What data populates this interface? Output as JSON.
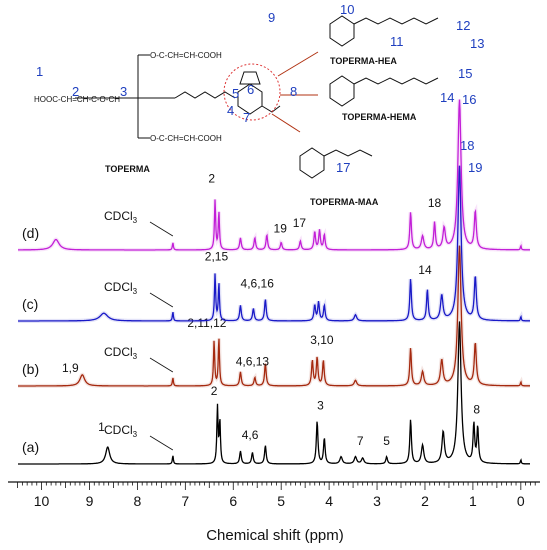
{
  "chart_data": {
    "type": "line",
    "title": "",
    "xlabel": "Chemical shift (ppm)",
    "ylabel": "",
    "xlim": [
      10.7,
      -0.4
    ],
    "reversed_x": true,
    "x_ticks": [
      "10",
      "9",
      "8",
      "7",
      "6",
      "5",
      "4",
      "3",
      "2",
      "1",
      "0"
    ],
    "solvent_label": "CDCl",
    "solvent_subscript": "3",
    "structures": {
      "core": "TOPERMA",
      "core_formula_left": "HOOC-CH=CH-C-O-CH",
      "derivatives": [
        "TOPERMA-HEA",
        "TOPERMA-HEMA",
        "TOPERMA-MAA"
      ],
      "core_numbers": [
        "1",
        "2",
        "3",
        "4",
        "5",
        "6",
        "7",
        "8"
      ],
      "hea_numbers": [
        "9",
        "10",
        "11",
        "12",
        "13"
      ],
      "hema_numbers": [
        "14",
        "15",
        "16"
      ],
      "maa_numbers": [
        "17",
        "18",
        "19"
      ]
    },
    "series": [
      {
        "name": "(a)",
        "color": "#000000",
        "peaks": [
          {
            "ppm": 8.62,
            "h": 0.12,
            "w": 0.05
          },
          {
            "ppm": 7.26,
            "h": 0.06,
            "w": 0.012
          },
          {
            "ppm": 6.33,
            "h": 0.4,
            "w": 0.015
          },
          {
            "ppm": 6.28,
            "h": 0.3,
            "w": 0.015
          },
          {
            "ppm": 5.85,
            "h": 0.09,
            "w": 0.02
          },
          {
            "ppm": 5.6,
            "h": 0.08,
            "w": 0.02
          },
          {
            "ppm": 5.33,
            "h": 0.13,
            "w": 0.02
          },
          {
            "ppm": 4.25,
            "h": 0.3,
            "w": 0.02
          },
          {
            "ppm": 4.1,
            "h": 0.18,
            "w": 0.02
          },
          {
            "ppm": 3.75,
            "h": 0.05,
            "w": 0.03
          },
          {
            "ppm": 3.45,
            "h": 0.05,
            "w": 0.03
          },
          {
            "ppm": 3.3,
            "h": 0.04,
            "w": 0.03
          },
          {
            "ppm": 2.8,
            "h": 0.05,
            "w": 0.02
          },
          {
            "ppm": 2.3,
            "h": 0.31,
            "w": 0.02
          },
          {
            "ppm": 2.05,
            "h": 0.13,
            "w": 0.03
          },
          {
            "ppm": 1.62,
            "h": 0.22,
            "w": 0.03
          },
          {
            "ppm": 1.28,
            "h": 1.0,
            "w": 0.04
          },
          {
            "ppm": 0.98,
            "h": 0.27,
            "w": 0.02
          },
          {
            "ppm": 0.9,
            "h": 0.25,
            "w": 0.02
          },
          {
            "ppm": 0.0,
            "h": 0.03,
            "w": 0.01
          }
        ],
        "labels": [
          {
            "text": "1",
            "ppm": 8.75,
            "dy": -10
          },
          {
            "text": "2",
            "ppm": 6.4,
            "dy": -6
          },
          {
            "text": "4,6",
            "ppm": 5.65,
            "dy": -6
          },
          {
            "text": "3",
            "ppm": 4.18,
            "dy": -6
          },
          {
            "text": "7",
            "ppm": 3.35,
            "dy": -6
          },
          {
            "text": "5",
            "ppm": 2.8,
            "dy": -6
          },
          {
            "text": "8",
            "ppm": 0.92,
            "dy": -6
          }
        ]
      },
      {
        "name": "(b)",
        "color": "#a52a0f",
        "peaks": [
          {
            "ppm": 9.15,
            "h": 0.08,
            "w": 0.06
          },
          {
            "ppm": 7.26,
            "h": 0.06,
            "w": 0.012
          },
          {
            "ppm": 6.4,
            "h": 0.32,
            "w": 0.015
          },
          {
            "ppm": 6.3,
            "h": 0.34,
            "w": 0.015
          },
          {
            "ppm": 5.85,
            "h": 0.1,
            "w": 0.02
          },
          {
            "ppm": 5.55,
            "h": 0.06,
            "w": 0.02
          },
          {
            "ppm": 5.33,
            "h": 0.16,
            "w": 0.02
          },
          {
            "ppm": 4.35,
            "h": 0.18,
            "w": 0.02
          },
          {
            "ppm": 4.25,
            "h": 0.2,
            "w": 0.02
          },
          {
            "ppm": 4.12,
            "h": 0.18,
            "w": 0.02
          },
          {
            "ppm": 3.45,
            "h": 0.04,
            "w": 0.03
          },
          {
            "ppm": 2.3,
            "h": 0.27,
            "w": 0.02
          },
          {
            "ppm": 2.05,
            "h": 0.1,
            "w": 0.03
          },
          {
            "ppm": 1.65,
            "h": 0.18,
            "w": 0.03
          },
          {
            "ppm": 1.28,
            "h": 1.0,
            "w": 0.04
          },
          {
            "ppm": 0.95,
            "h": 0.3,
            "w": 0.025
          },
          {
            "ppm": 0.0,
            "h": 0.03,
            "w": 0.01
          }
        ],
        "labels": [
          {
            "text": "1,9",
            "ppm": 9.4,
            "dy": -8
          },
          {
            "text": "2,11,12",
            "ppm": 6.55,
            "dy": -8
          },
          {
            "text": "4,6,13",
            "ppm": 5.6,
            "dy": -6
          },
          {
            "text": "3,10",
            "ppm": 4.15,
            "dy": -8
          }
        ]
      },
      {
        "name": "(c)",
        "color": "#1a1ac8",
        "peaks": [
          {
            "ppm": 8.7,
            "h": 0.05,
            "w": 0.1
          },
          {
            "ppm": 7.26,
            "h": 0.06,
            "w": 0.012
          },
          {
            "ppm": 6.38,
            "h": 0.3,
            "w": 0.015
          },
          {
            "ppm": 6.3,
            "h": 0.24,
            "w": 0.015
          },
          {
            "ppm": 5.85,
            "h": 0.1,
            "w": 0.02
          },
          {
            "ppm": 5.58,
            "h": 0.08,
            "w": 0.02
          },
          {
            "ppm": 5.33,
            "h": 0.14,
            "w": 0.02
          },
          {
            "ppm": 4.3,
            "h": 0.1,
            "w": 0.02
          },
          {
            "ppm": 4.22,
            "h": 0.12,
            "w": 0.02
          },
          {
            "ppm": 4.1,
            "h": 0.1,
            "w": 0.02
          },
          {
            "ppm": 3.45,
            "h": 0.04,
            "w": 0.03
          },
          {
            "ppm": 2.3,
            "h": 0.27,
            "w": 0.02
          },
          {
            "ppm": 1.95,
            "h": 0.2,
            "w": 0.02
          },
          {
            "ppm": 1.65,
            "h": 0.16,
            "w": 0.03
          },
          {
            "ppm": 1.28,
            "h": 1.0,
            "w": 0.04
          },
          {
            "ppm": 0.95,
            "h": 0.28,
            "w": 0.025
          },
          {
            "ppm": 0.0,
            "h": 0.03,
            "w": 0.01
          }
        ],
        "labels": [
          {
            "text": "2,15",
            "ppm": 6.35,
            "dy": -8
          },
          {
            "text": "4,6,16",
            "ppm": 5.5,
            "dy": -6
          },
          {
            "text": "14",
            "ppm": 2.0,
            "dy": -10
          }
        ]
      },
      {
        "name": "(d)",
        "color": "#c21fd8",
        "peaks": [
          {
            "ppm": 9.7,
            "h": 0.07,
            "w": 0.08
          },
          {
            "ppm": 7.26,
            "h": 0.05,
            "w": 0.012
          },
          {
            "ppm": 6.38,
            "h": 0.33,
            "w": 0.015
          },
          {
            "ppm": 6.3,
            "h": 0.25,
            "w": 0.015
          },
          {
            "ppm": 5.85,
            "h": 0.08,
            "w": 0.02
          },
          {
            "ppm": 5.55,
            "h": 0.08,
            "w": 0.02
          },
          {
            "ppm": 5.3,
            "h": 0.1,
            "w": 0.02
          },
          {
            "ppm": 5.0,
            "h": 0.05,
            "w": 0.02
          },
          {
            "ppm": 4.6,
            "h": 0.06,
            "w": 0.02
          },
          {
            "ppm": 4.3,
            "h": 0.12,
            "w": 0.02
          },
          {
            "ppm": 4.2,
            "h": 0.13,
            "w": 0.02
          },
          {
            "ppm": 4.1,
            "h": 0.1,
            "w": 0.02
          },
          {
            "ppm": 2.3,
            "h": 0.25,
            "w": 0.02
          },
          {
            "ppm": 2.05,
            "h": 0.09,
            "w": 0.03
          },
          {
            "ppm": 1.8,
            "h": 0.18,
            "w": 0.02
          },
          {
            "ppm": 1.6,
            "h": 0.14,
            "w": 0.03
          },
          {
            "ppm": 1.28,
            "h": 1.0,
            "w": 0.04
          },
          {
            "ppm": 0.95,
            "h": 0.25,
            "w": 0.025
          },
          {
            "ppm": 0.0,
            "h": 0.03,
            "w": 0.01
          }
        ],
        "labels": [
          {
            "text": "2",
            "ppm": 6.45,
            "dy": -12
          },
          {
            "text": "19",
            "ppm": 5.02,
            "dy": -4
          },
          {
            "text": "17",
            "ppm": 4.62,
            "dy": -8
          },
          {
            "text": "18",
            "ppm": 1.8,
            "dy": -10
          }
        ]
      }
    ]
  }
}
